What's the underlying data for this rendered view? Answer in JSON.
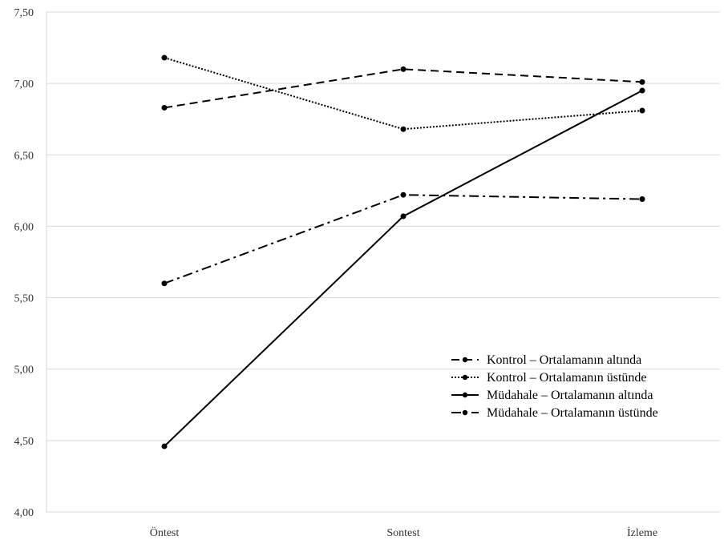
{
  "chart_data": {
    "type": "line",
    "title": "",
    "xlabel": "",
    "ylabel": "",
    "categories": [
      "Öntest",
      "Sontest",
      "İzleme"
    ],
    "ylim": [
      4.0,
      7.5
    ],
    "y_ticks": [
      "4,00",
      "4,50",
      "5,00",
      "5,50",
      "6,00",
      "6,50",
      "7,00",
      "7,50"
    ],
    "grid": "horizontal",
    "legend_position": "bottom-right",
    "series": [
      {
        "name": "Kontrol – Ortalamanın altında",
        "values": [
          6.83,
          7.1,
          7.01
        ],
        "dash": "10,6",
        "color": "#000000"
      },
      {
        "name": "Kontrol – Ortalamanın üstünde",
        "values": [
          7.18,
          6.68,
          6.81
        ],
        "dash": "2,2",
        "color": "#000000"
      },
      {
        "name": "Müdahale – Ortalamanın altında",
        "values": [
          4.46,
          6.07,
          6.95
        ],
        "dash": "",
        "color": "#000000"
      },
      {
        "name": "Müdahale – Ortalamanın üstünde",
        "values": [
          5.6,
          6.22,
          6.19
        ],
        "dash": "12,5,3,5",
        "color": "#000000"
      }
    ]
  }
}
